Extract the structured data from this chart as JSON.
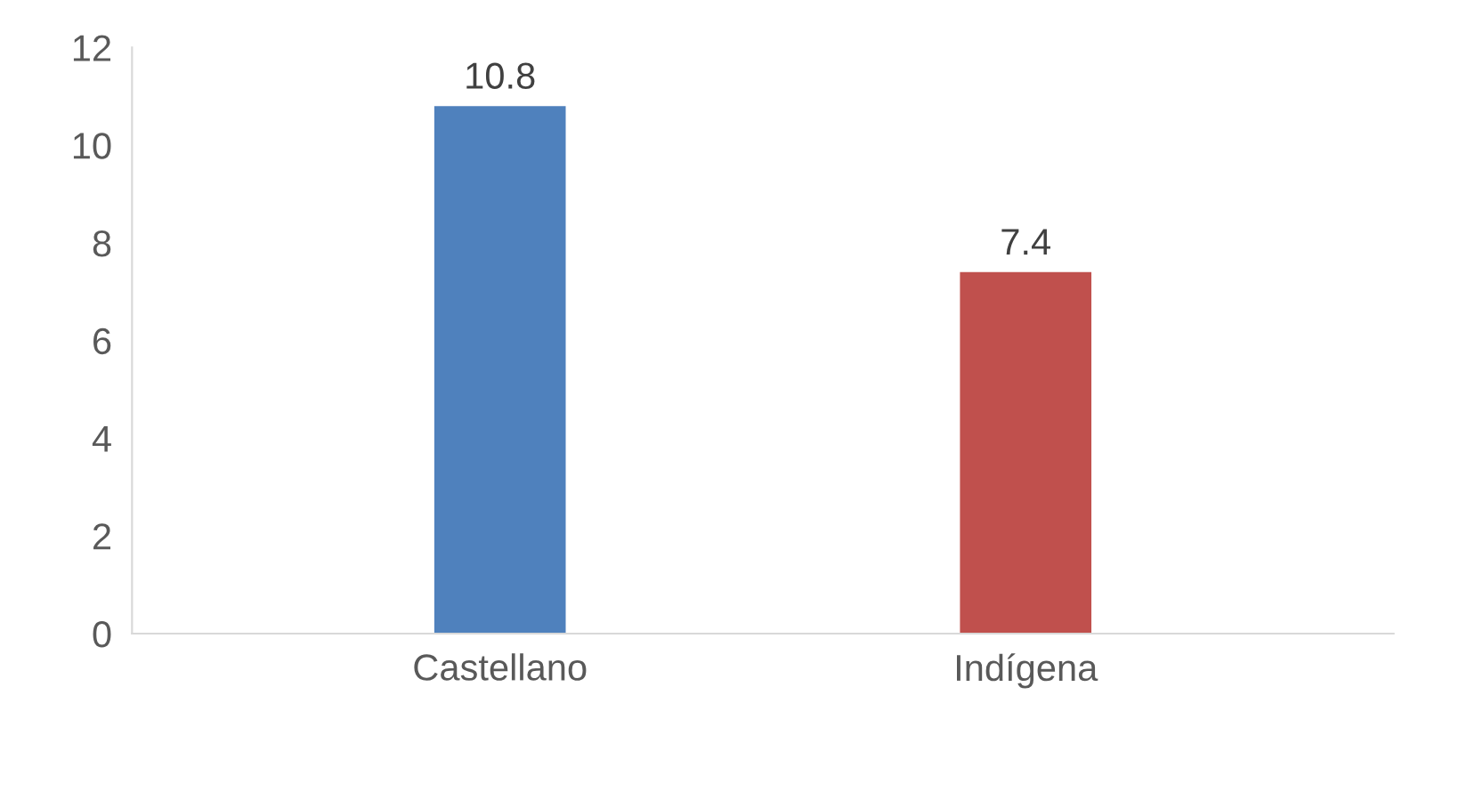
{
  "chart_data": {
    "type": "bar",
    "categories": [
      "Castellano",
      "Indígena"
    ],
    "values": [
      10.8,
      7.4
    ],
    "colors": [
      "#4f81bd",
      "#c0504d"
    ],
    "ylim": [
      0,
      12
    ],
    "yticks": [
      0,
      2,
      4,
      6,
      8,
      10,
      12
    ],
    "grid": false,
    "data_labels": true
  }
}
